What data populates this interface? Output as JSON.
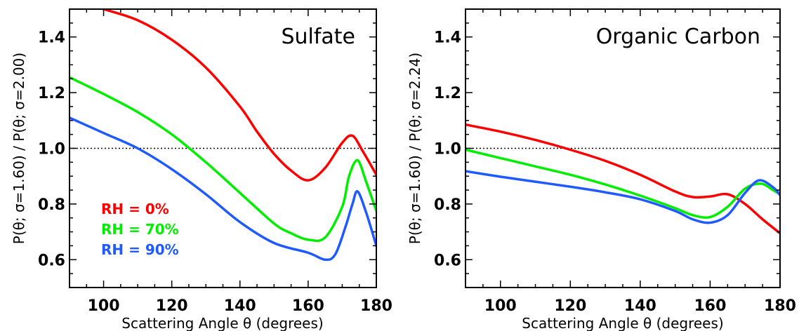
{
  "chart_data": [
    {
      "type": "line",
      "title": "Sulfate",
      "xlabel": "Scattering Angle θ (degrees)",
      "ylabel": "P(θ; σ=1.60) / P(θ; σ=2.00)",
      "xlim": [
        90,
        180
      ],
      "ylim": [
        0.5,
        1.5
      ],
      "x_ticks": [
        100,
        120,
        140,
        160,
        180
      ],
      "y_ticks": [
        0.6,
        0.8,
        1.0,
        1.2,
        1.4
      ],
      "reference_line": 1.0,
      "legend_placement": "lower-left",
      "series": [
        {
          "name": "RH =   0%",
          "color": "#ff0000",
          "points": [
            [
              90,
              1.535
            ],
            [
              100,
              1.5
            ],
            [
              110,
              1.46
            ],
            [
              120,
              1.39
            ],
            [
              130,
              1.29
            ],
            [
              140,
              1.15
            ],
            [
              145,
              1.06
            ],
            [
              150,
              0.98
            ],
            [
              155,
              0.92
            ],
            [
              160,
              0.885
            ],
            [
              165,
              0.93
            ],
            [
              170,
              1.02
            ],
            [
              173,
              1.045
            ],
            [
              176,
              0.99
            ],
            [
              180,
              0.905
            ]
          ]
        },
        {
          "name": "RH =  70%",
          "color": "#00ee00",
          "points": [
            [
              90,
              1.255
            ],
            [
              100,
              1.195
            ],
            [
              110,
              1.13
            ],
            [
              120,
              1.05
            ],
            [
              130,
              0.95
            ],
            [
              140,
              0.84
            ],
            [
              150,
              0.73
            ],
            [
              155,
              0.695
            ],
            [
              160,
              0.672
            ],
            [
              165,
              0.68
            ],
            [
              170,
              0.79
            ],
            [
              172,
              0.9
            ],
            [
              174.5,
              0.957
            ],
            [
              177,
              0.88
            ],
            [
              180,
              0.775
            ]
          ]
        },
        {
          "name": "RH =  90%",
          "color": "#1e5aff",
          "points": [
            [
              90,
              1.11
            ],
            [
              100,
              1.055
            ],
            [
              110,
              1.0
            ],
            [
              120,
              0.925
            ],
            [
              130,
              0.835
            ],
            [
              140,
              0.735
            ],
            [
              150,
              0.66
            ],
            [
              160,
              0.625
            ],
            [
              165,
              0.6
            ],
            [
              168,
              0.62
            ],
            [
              171,
              0.72
            ],
            [
              173,
              0.8
            ],
            [
              174.5,
              0.845
            ],
            [
              177,
              0.77
            ],
            [
              180,
              0.65
            ]
          ]
        }
      ]
    },
    {
      "type": "line",
      "title": "Organic Carbon",
      "xlabel": "Scattering Angle θ (degrees)",
      "ylabel": "P(θ; σ=1.60) / P(θ; σ=2.24)",
      "xlim": [
        90,
        180
      ],
      "ylim": [
        0.5,
        1.5
      ],
      "x_ticks": [
        100,
        120,
        140,
        160,
        180
      ],
      "y_ticks": [
        0.6,
        0.8,
        1.0,
        1.2,
        1.4
      ],
      "reference_line": 1.0,
      "series": [
        {
          "name": "RH =   0%",
          "color": "#ff0000",
          "points": [
            [
              90,
              1.085
            ],
            [
              100,
              1.06
            ],
            [
              110,
              1.03
            ],
            [
              120,
              0.995
            ],
            [
              130,
              0.955
            ],
            [
              140,
              0.905
            ],
            [
              150,
              0.845
            ],
            [
              155,
              0.825
            ],
            [
              160,
              0.827
            ],
            [
              165,
              0.835
            ],
            [
              170,
              0.8
            ],
            [
              175,
              0.745
            ],
            [
              180,
              0.695
            ]
          ]
        },
        {
          "name": "RH =  70%",
          "color": "#00ee00",
          "points": [
            [
              90,
              0.995
            ],
            [
              100,
              0.965
            ],
            [
              110,
              0.935
            ],
            [
              120,
              0.905
            ],
            [
              130,
              0.87
            ],
            [
              140,
              0.83
            ],
            [
              150,
              0.785
            ],
            [
              155,
              0.76
            ],
            [
              160,
              0.753
            ],
            [
              165,
              0.79
            ],
            [
              170,
              0.855
            ],
            [
              174.5,
              0.873
            ],
            [
              178,
              0.85
            ],
            [
              180,
              0.835
            ]
          ]
        },
        {
          "name": "RH =  90%",
          "color": "#1e5aff",
          "points": [
            [
              90,
              0.918
            ],
            [
              100,
              0.898
            ],
            [
              110,
              0.88
            ],
            [
              120,
              0.862
            ],
            [
              130,
              0.842
            ],
            [
              140,
              0.817
            ],
            [
              150,
              0.775
            ],
            [
              155,
              0.745
            ],
            [
              160,
              0.733
            ],
            [
              165,
              0.76
            ],
            [
              170,
              0.84
            ],
            [
              174,
              0.885
            ],
            [
              178,
              0.86
            ],
            [
              180,
              0.832
            ]
          ]
        }
      ]
    }
  ]
}
